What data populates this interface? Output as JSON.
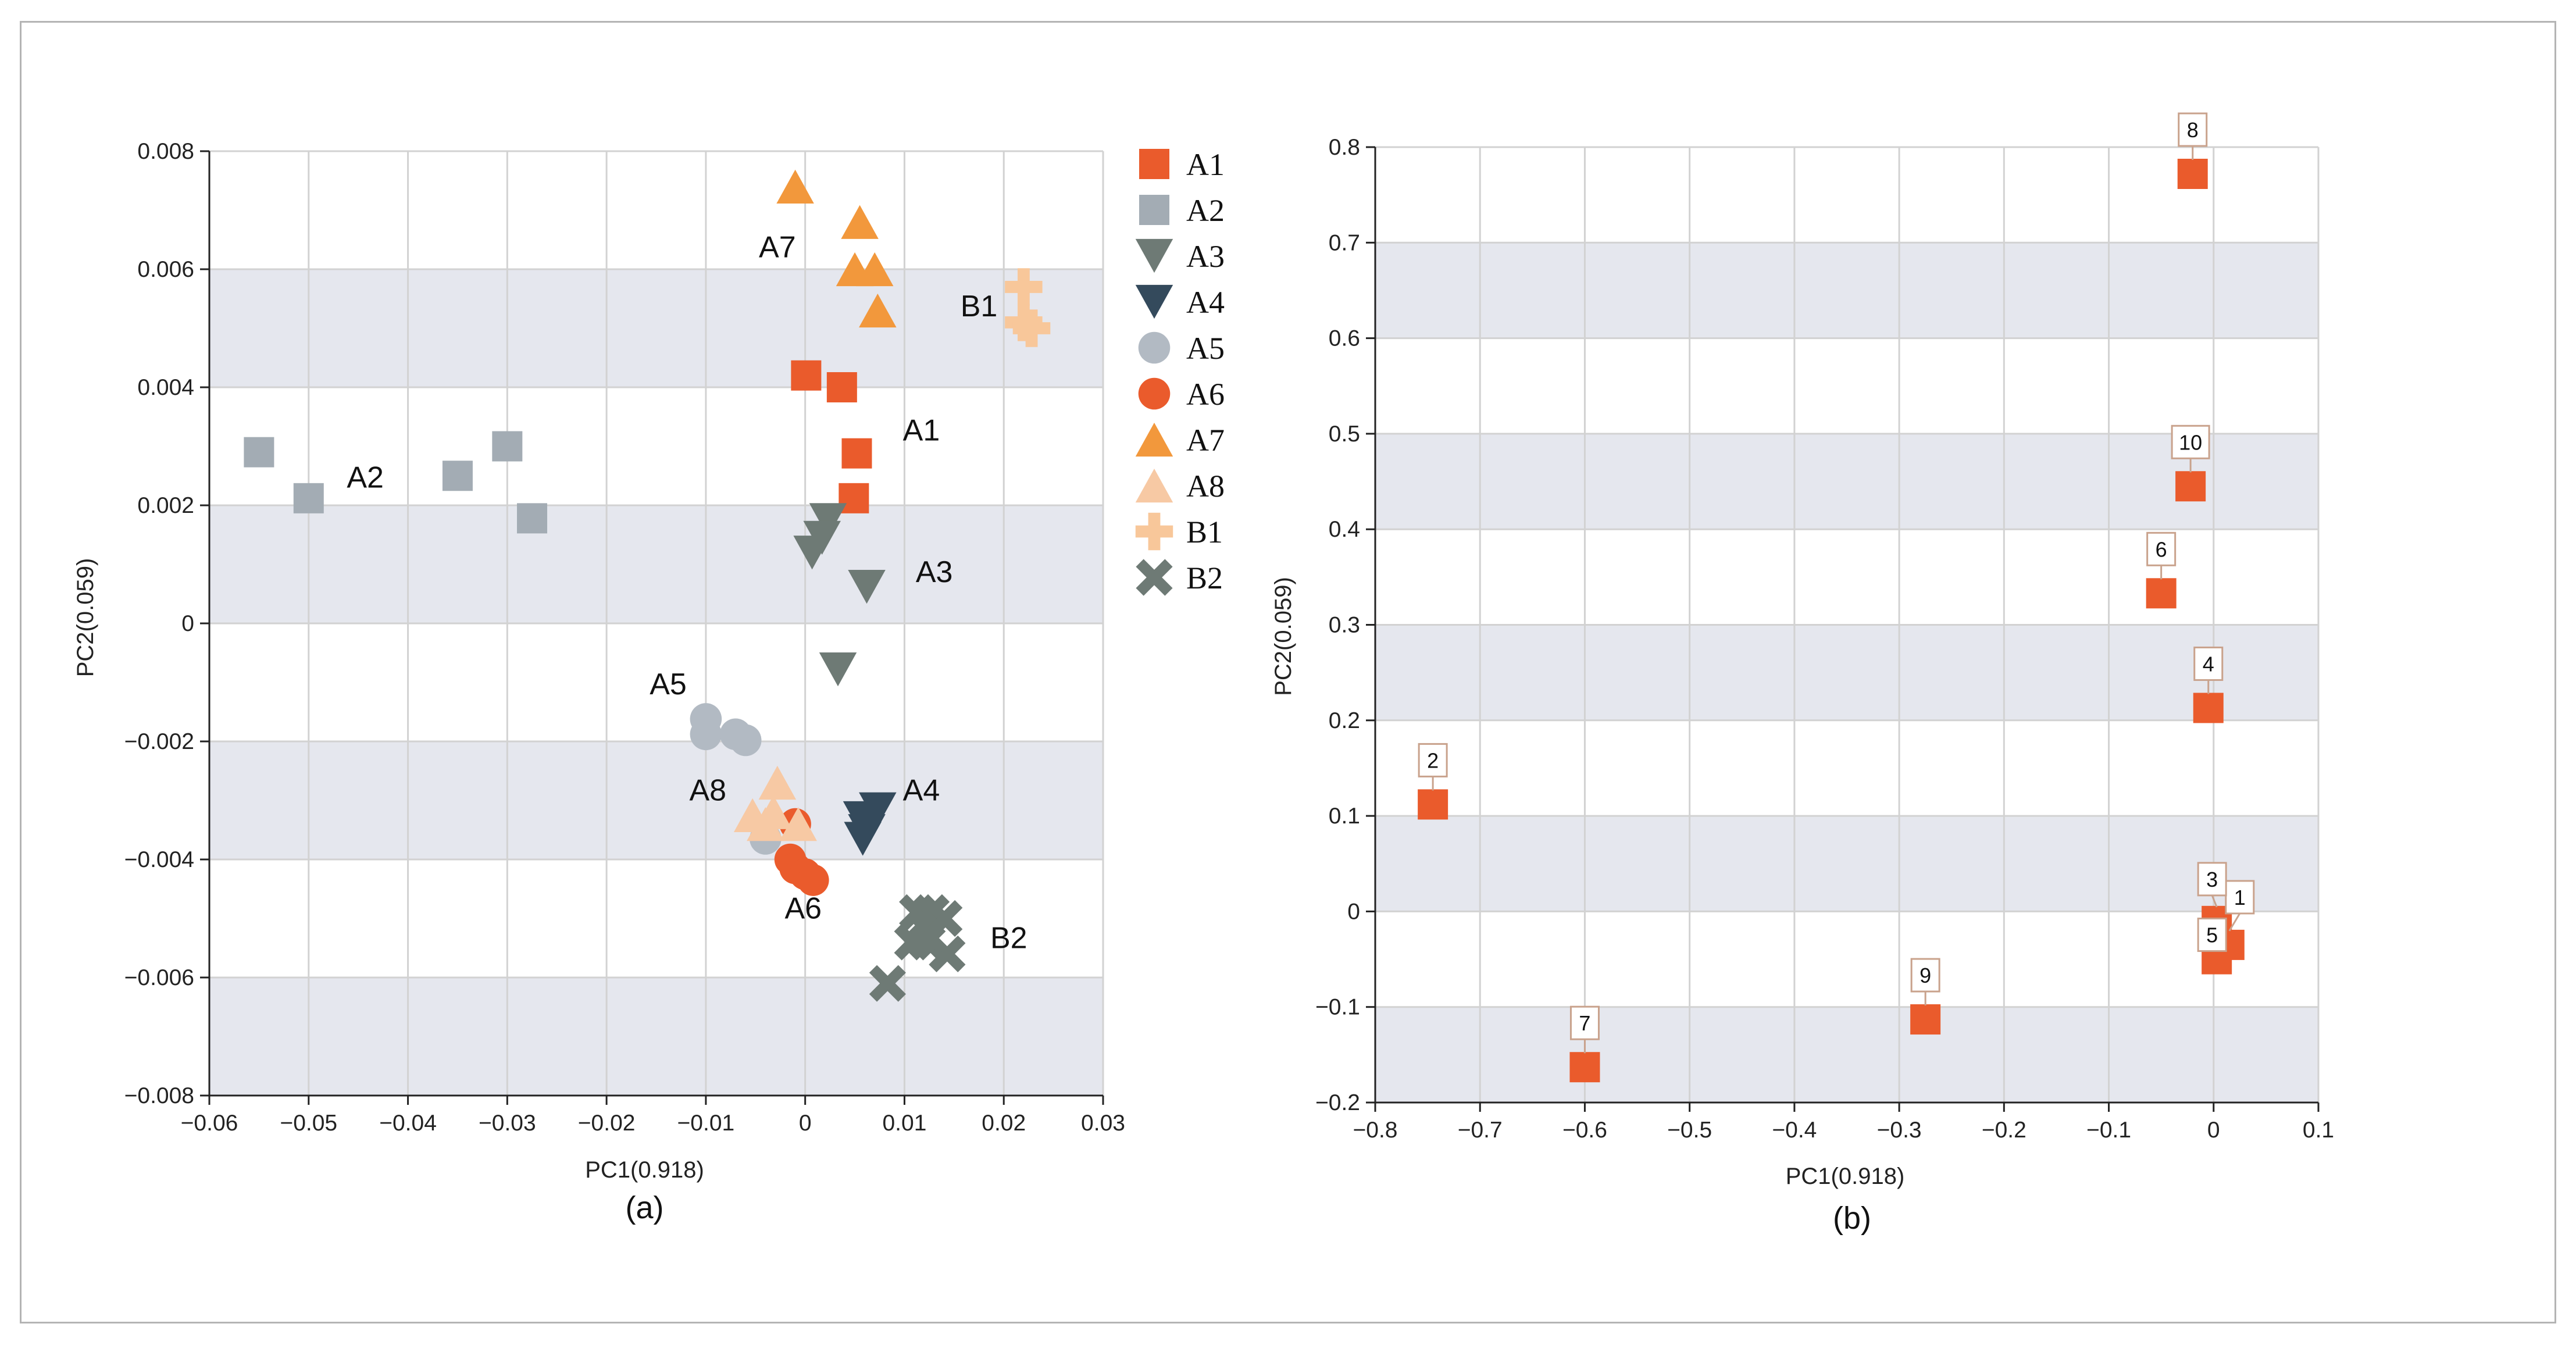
{
  "chart_data": [
    {
      "type": "scatter",
      "panel_label": "(a)",
      "xlabel": "PC1(0.918)",
      "ylabel": "PC2(0.059)",
      "xlim": [
        -0.06,
        0.03
      ],
      "ylim": [
        -0.008,
        0.008
      ],
      "x_ticks": [
        -0.06,
        -0.05,
        -0.04,
        -0.03,
        -0.02,
        -0.01,
        0,
        0.01,
        0.02,
        0.03
      ],
      "x_tick_labels": [
        "−0.06",
        "−0.05",
        "−0.04",
        "−0.03",
        "−0.02",
        "−0.01",
        "0",
        "0.01",
        "0.02",
        "0.03"
      ],
      "y_ticks": [
        -0.008,
        -0.006,
        -0.004,
        -0.002,
        0,
        0.002,
        0.004,
        0.006,
        0.008
      ],
      "y_tick_labels": [
        "−0.008",
        "−0.006",
        "−0.004",
        "−0.002",
        "0",
        "0.002",
        "0.004",
        "0.006",
        "0.008"
      ],
      "bands": [
        [
          0.004,
          0.006
        ],
        [
          0,
          0.002
        ],
        [
          -0.004,
          -0.002
        ],
        [
          -0.008,
          -0.006
        ]
      ],
      "legend_position": "right",
      "series": [
        {
          "name": "A1",
          "marker": "square",
          "color": "#ea5b2c",
          "points": [
            [
              0.0001,
              0.0042
            ],
            [
              0.0037,
              0.004
            ],
            [
              0.0052,
              0.00288
            ],
            [
              0.0049,
              0.00212
            ]
          ]
        },
        {
          "name": "A2",
          "marker": "square",
          "color": "#a3acb4",
          "points": [
            [
              -0.055,
              0.0029
            ],
            [
              -0.05,
              0.00212
            ],
            [
              -0.035,
              0.0025
            ],
            [
              -0.03,
              0.003
            ],
            [
              -0.0275,
              0.00178
            ]
          ]
        },
        {
          "name": "A3",
          "marker": "triangle-down",
          "color": "#6e7a75",
          "points": [
            [
              0.0023,
              0.00175
            ],
            [
              0.0017,
              0.00145
            ],
            [
              0.0007,
              0.0012
            ],
            [
              0.0062,
              0.00062
            ],
            [
              0.0033,
              -0.00078
            ]
          ]
        },
        {
          "name": "A4",
          "marker": "triangle-down",
          "color": "#344a5c",
          "points": [
            [
              0.0073,
              -0.00315
            ],
            [
              0.0057,
              -0.0033
            ],
            [
              0.0062,
              -0.00352
            ],
            [
              0.0058,
              -0.00365
            ]
          ]
        },
        {
          "name": "A5",
          "marker": "circle",
          "color": "#b2bac3",
          "points": [
            [
              -0.01,
              -0.00162
            ],
            [
              -0.01,
              -0.00188
            ],
            [
              -0.007,
              -0.00188
            ],
            [
              -0.006,
              -0.00198
            ],
            [
              -0.004,
              -0.00365
            ]
          ]
        },
        {
          "name": "A6",
          "marker": "circle",
          "color": "#ea5b2c",
          "points": [
            [
              -0.001,
              -0.0034
            ],
            [
              -0.0015,
              -0.004
            ],
            [
              -0.001,
              -0.00415
            ],
            [
              0.0,
              -0.00425
            ],
            [
              0.0008,
              -0.00435
            ]
          ]
        },
        {
          "name": "A7",
          "marker": "triangle-up",
          "color": "#f2983c",
          "points": [
            [
              -0.001,
              0.0074
            ],
            [
              0.0055,
              0.0068
            ],
            [
              0.005,
              0.006
            ],
            [
              0.007,
              0.006
            ],
            [
              0.0073,
              0.0053
            ]
          ]
        },
        {
          "name": "A8",
          "marker": "triangle-up",
          "color": "#f7c9a4",
          "points": [
            [
              -0.0028,
              -0.0027
            ],
            [
              -0.0053,
              -0.00325
            ],
            [
              -0.0032,
              -0.0032
            ],
            [
              -0.0007,
              -0.0034
            ],
            [
              -0.004,
              -0.0034
            ]
          ]
        },
        {
          "name": "B1",
          "marker": "cross",
          "color": "#f8c79a",
          "points": [
            [
              0.022,
              0.0057
            ],
            [
              0.022,
              0.0051
            ],
            [
              0.0228,
              0.005
            ]
          ]
        },
        {
          "name": "B2",
          "marker": "x",
          "color": "#6e7a75",
          "points": [
            [
              0.0113,
              -0.0049
            ],
            [
              0.0127,
              -0.0049
            ],
            [
              0.014,
              -0.005
            ],
            [
              0.0108,
              -0.0054
            ],
            [
              0.0123,
              -0.0054
            ],
            [
              0.0143,
              -0.0056
            ],
            [
              0.0083,
              -0.0061
            ]
          ]
        }
      ],
      "annotations": [
        {
          "text": "A7",
          "x": -0.0028,
          "y": 0.0062
        },
        {
          "text": "B1",
          "x": 0.0175,
          "y": 0.0052
        },
        {
          "text": "A1",
          "x": 0.0117,
          "y": 0.0031
        },
        {
          "text": "A2",
          "x": -0.0443,
          "y": 0.0023
        },
        {
          "text": "A3",
          "x": 0.013,
          "y": 0.0007
        },
        {
          "text": "A5",
          "x": -0.0138,
          "y": -0.0012
        },
        {
          "text": "A8",
          "x": -0.0098,
          "y": -0.003
        },
        {
          "text": "A4",
          "x": 0.0117,
          "y": -0.003
        },
        {
          "text": "A6",
          "x": -0.0002,
          "y": -0.005
        },
        {
          "text": "B2",
          "x": 0.0205,
          "y": -0.0055
        }
      ]
    },
    {
      "type": "scatter",
      "panel_label": "(b)",
      "xlabel": "PC1(0.918)",
      "ylabel": "PC2(0.059)",
      "xlim": [
        -0.8,
        0.1
      ],
      "ylim": [
        -0.2,
        0.8
      ],
      "x_ticks": [
        -0.8,
        -0.7,
        -0.6,
        -0.5,
        -0.4,
        -0.3,
        -0.2,
        -0.1,
        0,
        0.1
      ],
      "x_tick_labels": [
        "−0.8",
        "−0.7",
        "−0.6",
        "−0.5",
        "−0.4",
        "−0.3",
        "−0.2",
        "−0.1",
        "0",
        "0.1"
      ],
      "y_ticks": [
        -0.2,
        -0.1,
        0,
        0.1,
        0.2,
        0.3,
        0.4,
        0.5,
        0.6,
        0.7,
        0.8
      ],
      "y_tick_labels": [
        "−0.2",
        "−0.1",
        "0",
        "0.1",
        "0.2",
        "0.3",
        "0.4",
        "0.5",
        "0.6",
        "0.7",
        "0.8"
      ],
      "bands": [
        [
          0.6,
          0.7
        ],
        [
          0.4,
          0.5
        ],
        [
          0.2,
          0.3
        ],
        [
          0,
          0.1
        ],
        [
          -0.2,
          -0.1
        ]
      ],
      "marker": "square",
      "color": "#ea5b2c",
      "points": [
        {
          "label": "1",
          "x": 0.015,
          "y": -0.035
        },
        {
          "label": "2",
          "x": -0.745,
          "y": 0.112
        },
        {
          "label": "3",
          "x": 0.003,
          "y": -0.01
        },
        {
          "label": "4",
          "x": -0.005,
          "y": 0.213
        },
        {
          "label": "5",
          "x": 0.003,
          "y": -0.05
        },
        {
          "label": "6",
          "x": -0.05,
          "y": 0.333
        },
        {
          "label": "7",
          "x": -0.6,
          "y": -0.163
        },
        {
          "label": "8",
          "x": -0.02,
          "y": 0.772
        },
        {
          "label": "9",
          "x": -0.275,
          "y": -0.113
        },
        {
          "label": "10",
          "x": -0.022,
          "y": 0.445
        }
      ]
    }
  ]
}
